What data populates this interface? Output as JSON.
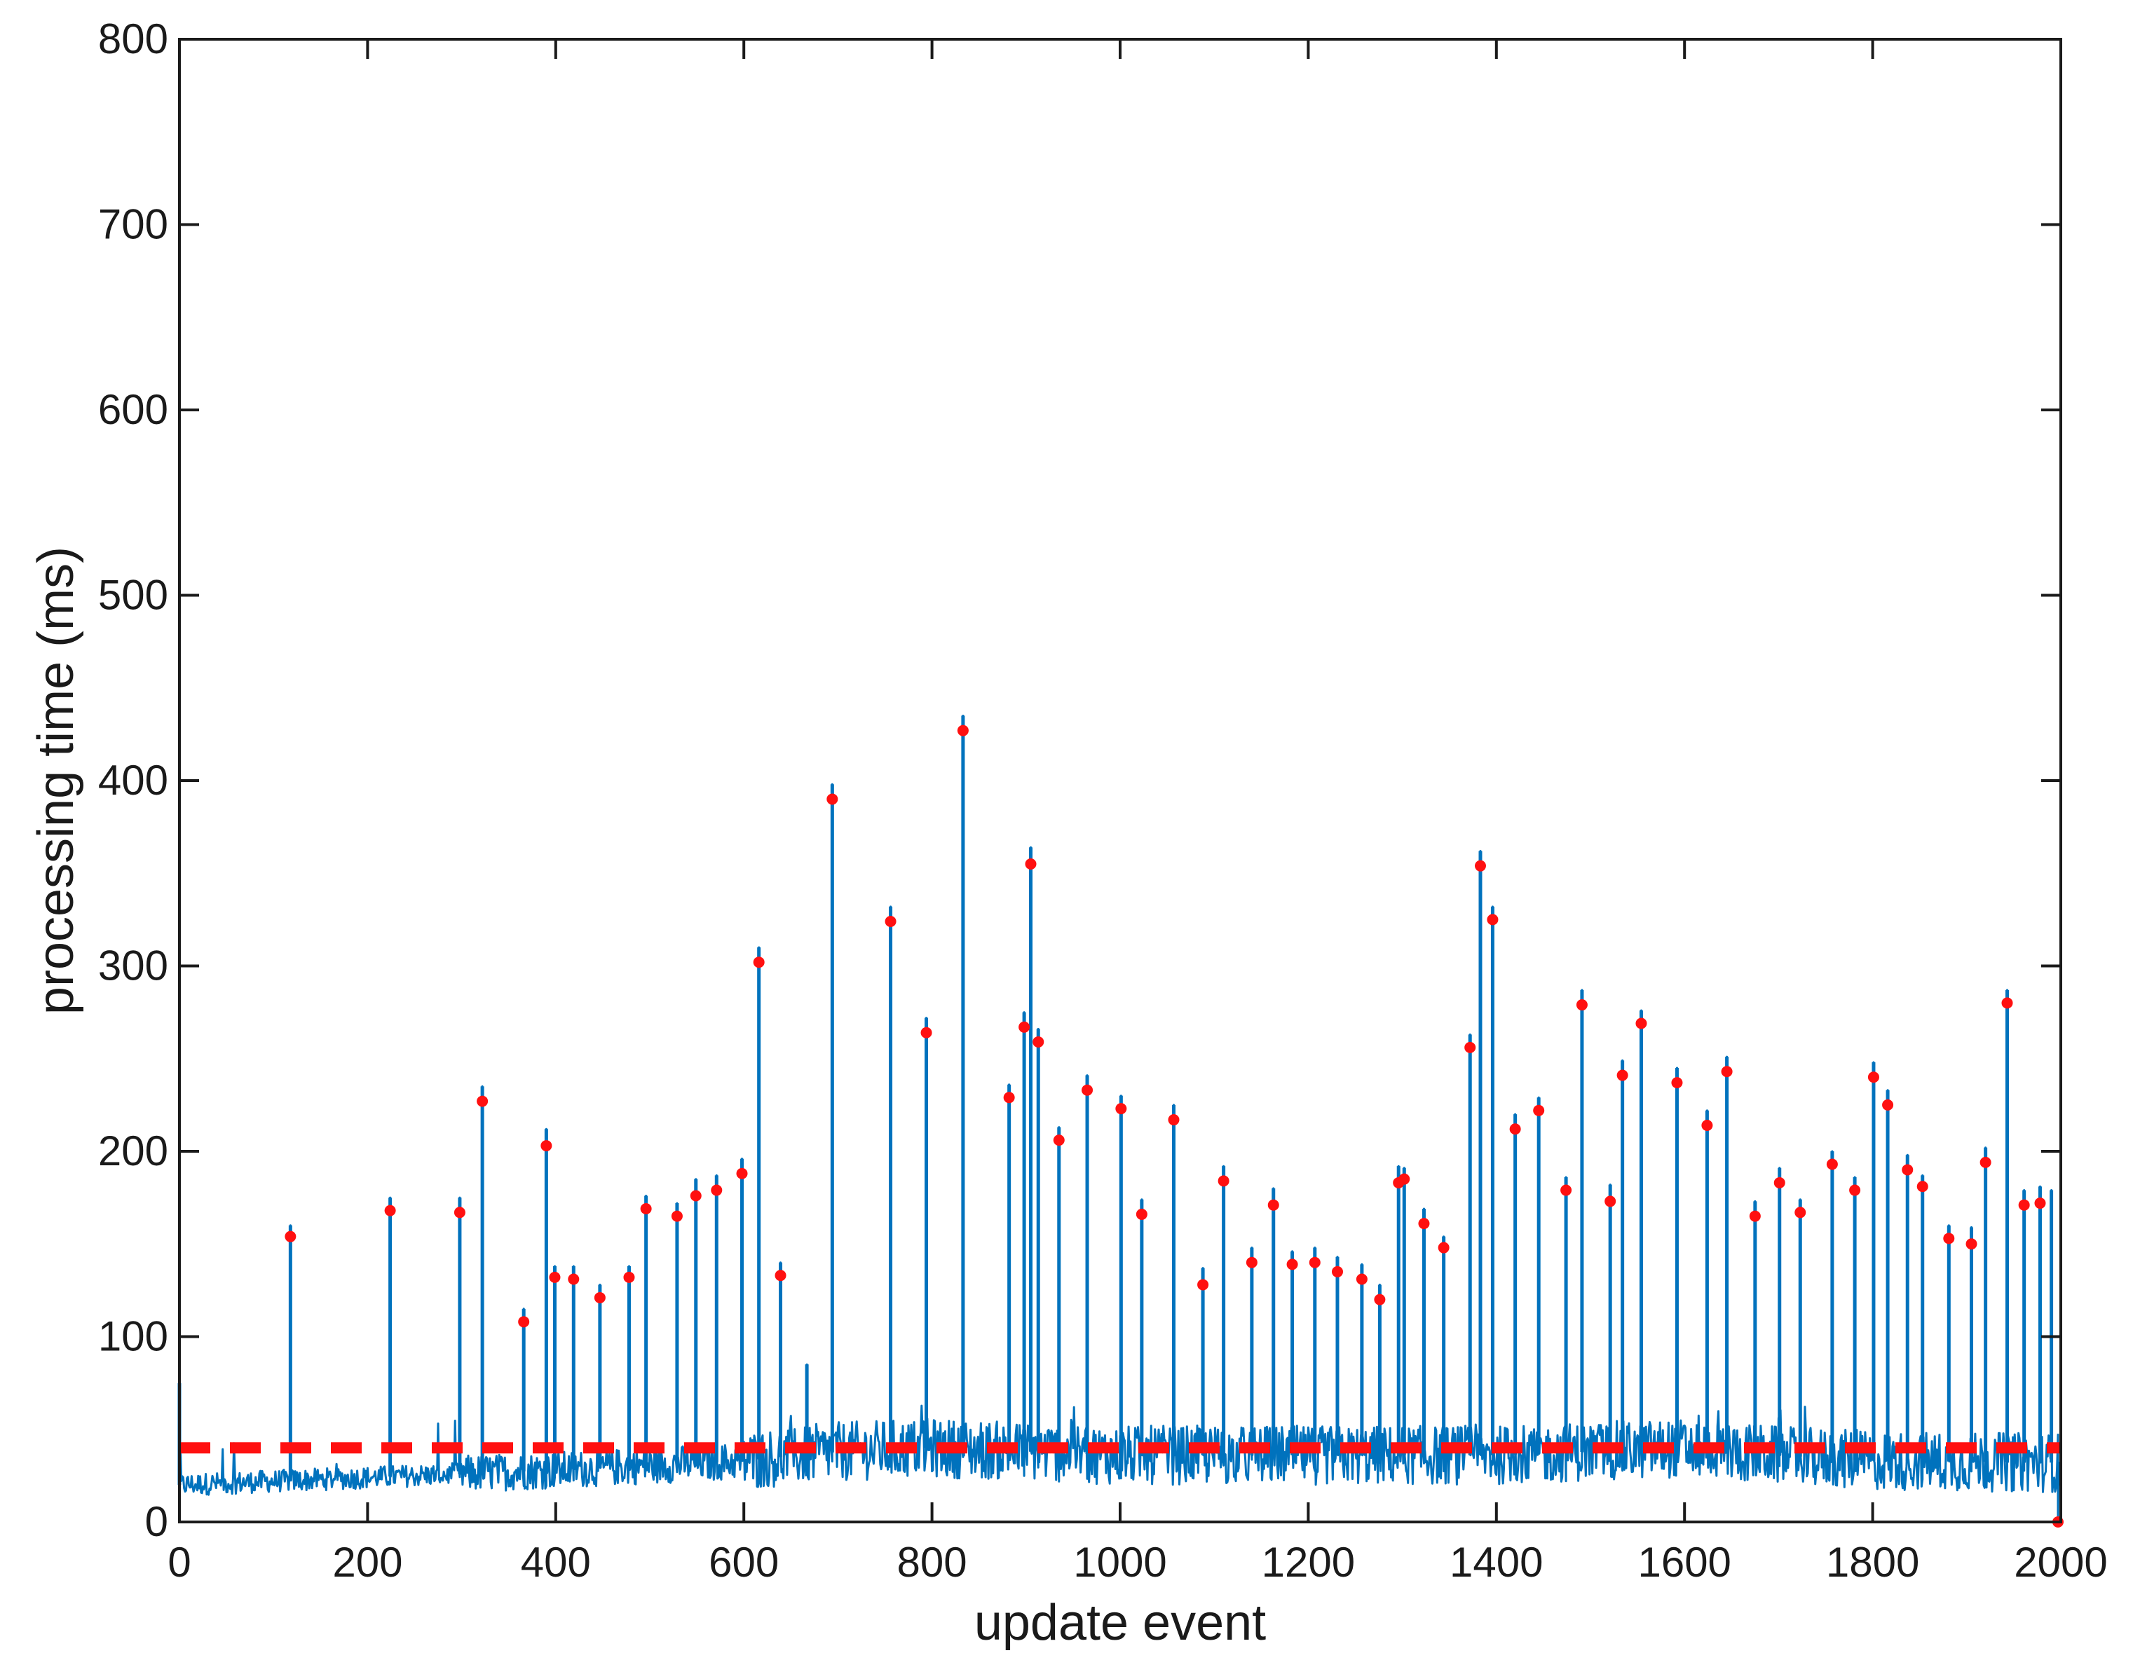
{
  "chart_data": {
    "type": "line",
    "title": "",
    "xlabel": "update event",
    "ylabel": "processing time (ms)",
    "xlim": [
      0,
      2000
    ],
    "ylim": [
      0,
      800
    ],
    "x_ticks": [
      0,
      200,
      400,
      600,
      800,
      1000,
      1200,
      1400,
      1600,
      1800,
      2000
    ],
    "y_ticks": [
      0,
      100,
      200,
      300,
      400,
      500,
      600,
      700,
      800
    ],
    "grid": false,
    "legend": "none",
    "colors": {
      "series": "#0072BD",
      "peaks": "#FF1010",
      "threshold": "#FF1010"
    },
    "series": [
      {
        "name": "",
        "style": "line",
        "baseline_profile": [
          [
            0,
            20
          ],
          [
            200,
            24
          ],
          [
            400,
            28
          ],
          [
            600,
            33
          ],
          [
            700,
            38
          ],
          [
            800,
            40
          ],
          [
            1000,
            36
          ],
          [
            1200,
            36
          ],
          [
            1400,
            36
          ],
          [
            1600,
            40
          ],
          [
            1700,
            36
          ],
          [
            1800,
            33
          ],
          [
            2000,
            32
          ]
        ],
        "x": [
          0,
          118,
          224,
          298,
          322,
          366,
          390,
          399,
          419,
          447,
          478,
          496,
          529,
          549,
          571,
          598,
          616,
          639,
          667,
          694,
          756,
          794,
          833,
          882,
          898,
          905,
          913,
          935,
          965,
          1001,
          1023,
          1057,
          1088,
          1110,
          1140,
          1163,
          1183,
          1207,
          1231,
          1257,
          1276,
          1296,
          1302,
          1323,
          1344,
          1372,
          1383,
          1396,
          1420,
          1445,
          1474,
          1491,
          1521,
          1534,
          1554,
          1592,
          1624,
          1645,
          1675,
          1701,
          1723,
          1757,
          1781,
          1801,
          1816,
          1837,
          1853,
          1881,
          1905,
          1920,
          1943,
          1961,
          1978,
          1990,
          1997
        ],
        "y": [
          75,
          160,
          175,
          175,
          235,
          115,
          212,
          138,
          138,
          128,
          138,
          176,
          172,
          185,
          187,
          196,
          310,
          140,
          85,
          398,
          332,
          272,
          435,
          236,
          275,
          364,
          266,
          213,
          241,
          230,
          174,
          225,
          137,
          192,
          148,
          180,
          146,
          148,
          143,
          139,
          128,
          192,
          191,
          169,
          154,
          263,
          362,
          332,
          220,
          229,
          186,
          287,
          182,
          249,
          276,
          245,
          222,
          251,
          173,
          191,
          174,
          200,
          186,
          248,
          233,
          198,
          187,
          160,
          159,
          202,
          287,
          179,
          181,
          179,
          0
        ]
      },
      {
        "name": "",
        "style": "markers",
        "x": [
          118,
          224,
          298,
          322,
          366,
          390,
          399,
          419,
          447,
          478,
          496,
          529,
          549,
          571,
          598,
          616,
          639,
          694,
          756,
          794,
          833,
          882,
          898,
          905,
          913,
          935,
          965,
          1001,
          1023,
          1057,
          1088,
          1110,
          1140,
          1163,
          1183,
          1207,
          1231,
          1257,
          1276,
          1296,
          1302,
          1323,
          1344,
          1372,
          1383,
          1396,
          1420,
          1445,
          1474,
          1491,
          1521,
          1534,
          1554,
          1592,
          1624,
          1645,
          1675,
          1701,
          1723,
          1757,
          1781,
          1801,
          1816,
          1837,
          1853,
          1881,
          1905,
          1920,
          1943,
          1961,
          1978,
          1997
        ],
        "y": [
          154,
          168,
          167,
          227,
          108,
          203,
          132,
          131,
          121,
          132,
          169,
          165,
          176,
          179,
          188,
          302,
          133,
          390,
          324,
          264,
          427,
          229,
          267,
          355,
          259,
          206,
          233,
          223,
          166,
          217,
          128,
          184,
          140,
          171,
          139,
          140,
          135,
          131,
          120,
          183,
          185,
          161,
          148,
          256,
          354,
          325,
          212,
          222,
          179,
          279,
          173,
          241,
          269,
          237,
          214,
          243,
          165,
          183,
          167,
          193,
          179,
          240,
          225,
          190,
          181,
          153,
          150,
          194,
          280,
          171,
          172,
          0
        ]
      },
      {
        "name": "",
        "style": "dashed",
        "x": [
          0,
          2000
        ],
        "y": [
          40,
          40
        ]
      }
    ]
  }
}
